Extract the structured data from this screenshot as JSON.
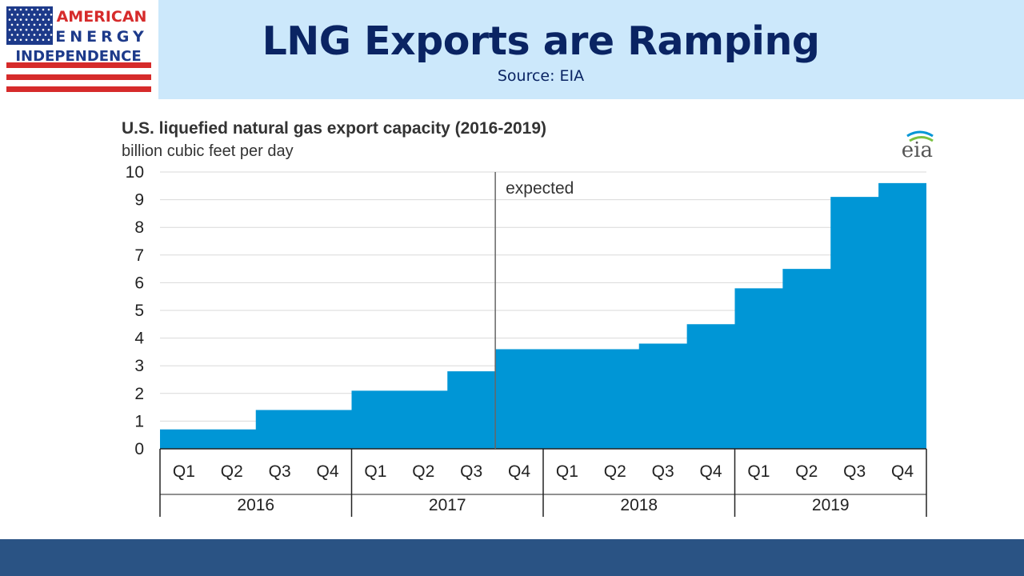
{
  "header": {
    "title": "LNG Exports are Ramping",
    "source": "Source: EIA",
    "logo": {
      "line1": "AMERICAN",
      "line2": "ENERGY",
      "line3": "INDEPENDENCE",
      "flag_colors": {
        "blue": "#1d3a8a",
        "red": "#d62b2b"
      }
    }
  },
  "chart_data": {
    "type": "area",
    "step": true,
    "title": "U.S. liquefied natural gas export capacity (2016-2019)",
    "ylabel": "billion cubic feet per day",
    "watermark": "eia",
    "ylim": [
      0,
      10
    ],
    "yticks": [
      "0",
      "1",
      "2",
      "3",
      "4",
      "5",
      "6",
      "7",
      "8",
      "9",
      "10"
    ],
    "annotation": "expected",
    "annotation_after_index": 6,
    "quarters": [
      "Q1",
      "Q2",
      "Q3",
      "Q4",
      "Q1",
      "Q2",
      "Q3",
      "Q4",
      "Q1",
      "Q2",
      "Q3",
      "Q4",
      "Q1",
      "Q2",
      "Q3",
      "Q4"
    ],
    "years": [
      "2016",
      "2017",
      "2018",
      "2019"
    ],
    "series": [
      {
        "name": "export capacity",
        "color": "#0096d6",
        "values": [
          0.7,
          0.7,
          1.4,
          1.4,
          2.1,
          2.1,
          2.8,
          3.6,
          3.6,
          3.6,
          3.8,
          4.5,
          5.8,
          6.5,
          9.1,
          9.6
        ]
      }
    ]
  }
}
